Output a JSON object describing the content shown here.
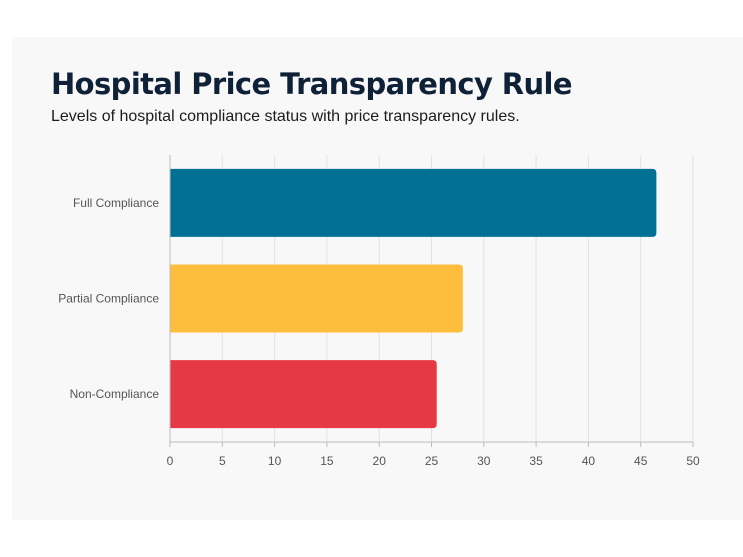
{
  "chart_data": {
    "type": "bar",
    "orientation": "horizontal",
    "title": "Hospital Price Transparency Rule",
    "subtitle": "Levels of hospital compliance status with price transparency rules.",
    "categories": [
      "Full Compliance",
      "Partial Compliance",
      "Non-Compliance"
    ],
    "values": [
      46.5,
      28,
      25.5
    ],
    "colors": [
      "#007095",
      "#fdbd3d",
      "#e63946"
    ],
    "xlim": [
      0,
      50
    ],
    "xticks": [
      "0",
      "5",
      "10",
      "15",
      "20",
      "25",
      "30",
      "35",
      "40",
      "45",
      "50"
    ],
    "xlabel": "",
    "ylabel": "",
    "grid": true,
    "legend": "none"
  }
}
